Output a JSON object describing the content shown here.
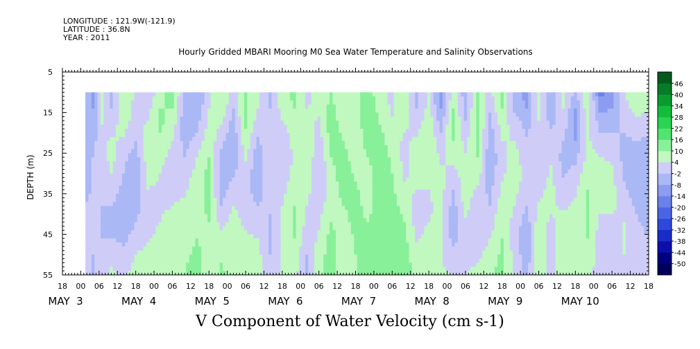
{
  "header": {
    "longitude": "LONGITUDE : 121.9W(-121.9)",
    "latitude": "LATITUDE : 36.8N",
    "year": "YEAR : 2011"
  },
  "chart_data": {
    "type": "heatmap",
    "title": "Hourly Gridded MBARI Mooring M0 Sea Water Temperature and Salinity Observations",
    "xlabel": "V Component of Water Velocity (cm s-1)",
    "ylabel": "DEPTH (m)",
    "ylim": [
      5,
      55
    ],
    "y_inverted": true,
    "y_ticks": [
      5,
      15,
      25,
      35,
      45,
      55
    ],
    "data_depth_range": [
      10,
      55
    ],
    "x_range_hours": [
      -6,
      186
    ],
    "data_start_hour": 1.5,
    "hour_tick_labels": [
      "18",
      "00",
      "06",
      "12",
      "18",
      "00",
      "06",
      "12",
      "18",
      "00",
      "06",
      "12",
      "18",
      "00",
      "06",
      "12",
      "18",
      "00",
      "06",
      "12",
      "18",
      "00",
      "06",
      "12",
      "18",
      "00",
      "06",
      "12",
      "18",
      "00",
      "06",
      "12",
      "18"
    ],
    "day_labels": [
      {
        "hour": 0,
        "text": "MAY  3"
      },
      {
        "hour": 24,
        "text": "MAY  4"
      },
      {
        "hour": 48,
        "text": "MAY  5"
      },
      {
        "hour": 72,
        "text": "MAY  6"
      },
      {
        "hour": 96,
        "text": "MAY  7"
      },
      {
        "hour": 120,
        "text": "MAY  8"
      },
      {
        "hour": 144,
        "text": "MAY  9"
      },
      {
        "hour": 168,
        "text": "MAY 10"
      }
    ],
    "colorbar": {
      "levels": [
        -50,
        -44,
        -38,
        -32,
        -26,
        -20,
        -14,
        -8,
        -2,
        4,
        10,
        16,
        22,
        28,
        34,
        40,
        46
      ],
      "colors": [
        "#00005a",
        "#000080",
        "#0a10a8",
        "#1a2cc8",
        "#2e48dc",
        "#4a64e4",
        "#6a80ea",
        "#8c9cf0",
        "#aab8f6",
        "#cfcdf8",
        "#c0f8c0",
        "#88f098",
        "#50e470",
        "#28d450",
        "#14bc3c",
        "#0a9c30",
        "#067c26",
        "#045a1c"
      ]
    },
    "time_profiles_hours": [
      {
        "hour": 1.5,
        "values": [
          -6,
          -4,
          -3,
          -4,
          -6,
          -6,
          -4,
          -2,
          -1,
          1,
          2,
          1
        ]
      },
      {
        "hour": 4,
        "values": [
          -9,
          -8,
          -6,
          -4,
          -2,
          -2,
          -1,
          0,
          0,
          -1,
          -2,
          -3
        ]
      },
      {
        "hour": 7,
        "values": [
          8,
          6,
          4,
          2,
          1,
          0,
          -1,
          -2,
          -3,
          -2,
          -1,
          1
        ]
      },
      {
        "hour": 10,
        "values": [
          -5,
          -2,
          2,
          5,
          6,
          4,
          1,
          -2,
          -4,
          -2,
          2,
          5
        ]
      },
      {
        "hour": 14,
        "values": [
          10,
          8,
          6,
          3,
          0,
          -2,
          -4,
          -6,
          -7,
          -4,
          0,
          3
        ]
      },
      {
        "hour": 18,
        "values": [
          3,
          2,
          1,
          -2,
          -5,
          -8,
          -6,
          -4,
          -2,
          1,
          4,
          6
        ]
      },
      {
        "hour": 22,
        "values": [
          -2,
          2,
          5,
          7,
          8,
          6,
          4,
          2,
          1,
          3,
          6,
          8
        ]
      },
      {
        "hour": 26,
        "values": [
          8,
          10,
          11,
          9,
          6,
          4,
          3,
          3,
          4,
          6,
          8,
          9
        ]
      },
      {
        "hour": 30,
        "values": [
          12,
          10,
          7,
          4,
          2,
          1,
          2,
          4,
          6,
          8,
          9,
          10
        ]
      },
      {
        "hour": 34,
        "values": [
          -3,
          -5,
          -6,
          -4,
          -2,
          1,
          3,
          5,
          7,
          8,
          9,
          10
        ]
      },
      {
        "hour": 38,
        "values": [
          -8,
          -7,
          -4,
          0,
          4,
          6,
          7,
          8,
          9,
          10,
          11,
          12
        ]
      },
      {
        "hour": 42,
        "values": [
          2,
          4,
          6,
          8,
          10,
          12,
          12,
          11,
          10,
          9,
          8,
          7
        ]
      },
      {
        "hour": 46,
        "values": [
          10,
          8,
          4,
          0,
          -4,
          -6,
          -5,
          -2,
          2,
          6,
          9,
          11
        ]
      },
      {
        "hour": 50,
        "values": [
          2,
          -2,
          -5,
          -7,
          -6,
          -3,
          1,
          4,
          6,
          7,
          8,
          9
        ]
      },
      {
        "hour": 54,
        "values": [
          10,
          12,
          11,
          8,
          5,
          2,
          0,
          1,
          3,
          5,
          6,
          7
        ]
      },
      {
        "hour": 58,
        "values": [
          6,
          4,
          1,
          -3,
          -6,
          -7,
          -5,
          -2,
          1,
          4,
          6,
          7
        ]
      },
      {
        "hour": 62,
        "values": [
          -4,
          -2,
          1,
          3,
          4,
          3,
          1,
          -1,
          -3,
          -4,
          -2,
          1
        ]
      },
      {
        "hour": 66,
        "values": [
          8,
          6,
          3,
          0,
          -1,
          0,
          2,
          4,
          6,
          6,
          5,
          4
        ]
      },
      {
        "hour": 70,
        "values": [
          12,
          10,
          8,
          6,
          5,
          6,
          8,
          10,
          11,
          10,
          8,
          6
        ]
      },
      {
        "hour": 74,
        "values": [
          2,
          4,
          6,
          8,
          9,
          8,
          6,
          4,
          2,
          0,
          -2,
          -3
        ]
      },
      {
        "hour": 78,
        "values": [
          6,
          5,
          3,
          1,
          -1,
          -2,
          -1,
          1,
          3,
          5,
          7,
          8
        ]
      },
      {
        "hour": 82,
        "values": [
          10,
          12,
          13,
          12,
          10,
          8,
          7,
          8,
          10,
          12,
          13,
          13
        ]
      },
      {
        "hour": 86,
        "values": [
          4,
          6,
          8,
          10,
          12,
          13,
          12,
          10,
          8,
          6,
          5,
          4
        ]
      },
      {
        "hour": 90,
        "values": [
          9,
          8,
          7,
          6,
          7,
          9,
          11,
          12,
          12,
          11,
          10,
          9
        ]
      },
      {
        "hour": 94,
        "values": [
          13,
          14,
          14,
          12,
          10,
          8,
          7,
          8,
          10,
          12,
          13,
          14
        ]
      },
      {
        "hour": 98,
        "values": [
          6,
          8,
          10,
          12,
          13,
          14,
          14,
          13,
          12,
          13,
          14,
          15
        ]
      },
      {
        "hour": 102,
        "values": [
          2,
          3,
          5,
          7,
          9,
          10,
          11,
          12,
          13,
          14,
          15,
          14
        ]
      },
      {
        "hour": 106,
        "values": [
          10,
          8,
          5,
          3,
          2,
          3,
          5,
          8,
          10,
          12,
          13,
          12
        ]
      },
      {
        "hour": 110,
        "values": [
          -4,
          -2,
          2,
          5,
          7,
          6,
          4,
          2,
          1,
          3,
          6,
          9
        ]
      },
      {
        "hour": 114,
        "values": [
          4,
          6,
          8,
          9,
          8,
          6,
          4,
          3,
          4,
          6,
          8,
          10
        ]
      },
      {
        "hour": 118,
        "values": [
          -12,
          -8,
          -4,
          0,
          3,
          5,
          6,
          6,
          5,
          4,
          4,
          5
        ]
      },
      {
        "hour": 122,
        "values": [
          8,
          10,
          12,
          10,
          6,
          2,
          -2,
          -5,
          -6,
          -4,
          0,
          4
        ]
      },
      {
        "hour": 126,
        "values": [
          -6,
          -4,
          -1,
          2,
          5,
          7,
          8,
          6,
          3,
          1,
          2,
          4
        ]
      },
      {
        "hour": 130,
        "values": [
          10,
          12,
          13,
          12,
          10,
          7,
          3,
          0,
          -2,
          -1,
          2,
          6
        ]
      },
      {
        "hour": 134,
        "values": [
          2,
          -1,
          -4,
          -6,
          -7,
          -6,
          -4,
          -2,
          1,
          4,
          7,
          9
        ]
      },
      {
        "hour": 138,
        "values": [
          12,
          10,
          7,
          4,
          2,
          3,
          5,
          7,
          9,
          10,
          11,
          12
        ]
      },
      {
        "hour": 142,
        "values": [
          -6,
          -3,
          1,
          4,
          6,
          7,
          6,
          4,
          2,
          1,
          2,
          3
        ]
      },
      {
        "hour": 146,
        "values": [
          -10,
          -8,
          -4,
          -1,
          1,
          2,
          1,
          -2,
          -5,
          -7,
          -6,
          -4
        ]
      },
      {
        "hour": 150,
        "values": [
          8,
          6,
          3,
          0,
          -2,
          -1,
          2,
          5,
          7,
          8,
          8,
          7
        ]
      },
      {
        "hour": 154,
        "values": [
          -8,
          -6,
          -3,
          0,
          3,
          5,
          6,
          5,
          3,
          1,
          0,
          1
        ]
      },
      {
        "hour": 158,
        "values": [
          6,
          4,
          1,
          -2,
          -4,
          -3,
          0,
          3,
          6,
          8,
          9,
          10
        ]
      },
      {
        "hour": 162,
        "values": [
          -4,
          -8,
          -10,
          -8,
          -4,
          0,
          3,
          5,
          6,
          6,
          5,
          4
        ]
      },
      {
        "hour": 166,
        "values": [
          10,
          8,
          6,
          5,
          6,
          8,
          10,
          11,
          11,
          10,
          9,
          8
        ]
      },
      {
        "hour": 170,
        "values": [
          -16,
          -10,
          -4,
          1,
          4,
          6,
          6,
          5,
          3,
          1,
          0,
          -1
        ]
      },
      {
        "hour": 174,
        "values": [
          -12,
          -8,
          -4,
          0,
          3,
          5,
          6,
          5,
          3,
          1,
          -1,
          -2
        ]
      },
      {
        "hour": 178,
        "values": [
          4,
          2,
          -1,
          -3,
          -4,
          -3,
          -1,
          2,
          4,
          5,
          4,
          2
        ]
      },
      {
        "hour": 182,
        "values": [
          10,
          6,
          2,
          -2,
          -5,
          -6,
          -5,
          -3,
          -1,
          1,
          2,
          2
        ]
      },
      {
        "hour": 185.5,
        "values": [
          8,
          5,
          1,
          -3,
          -5,
          -6,
          -6,
          -5,
          -4,
          -2,
          0,
          2
        ]
      }
    ],
    "profile_depths": [
      10,
      14,
      18,
      22,
      26,
      30,
      34,
      38,
      42,
      46,
      50,
      55
    ]
  }
}
